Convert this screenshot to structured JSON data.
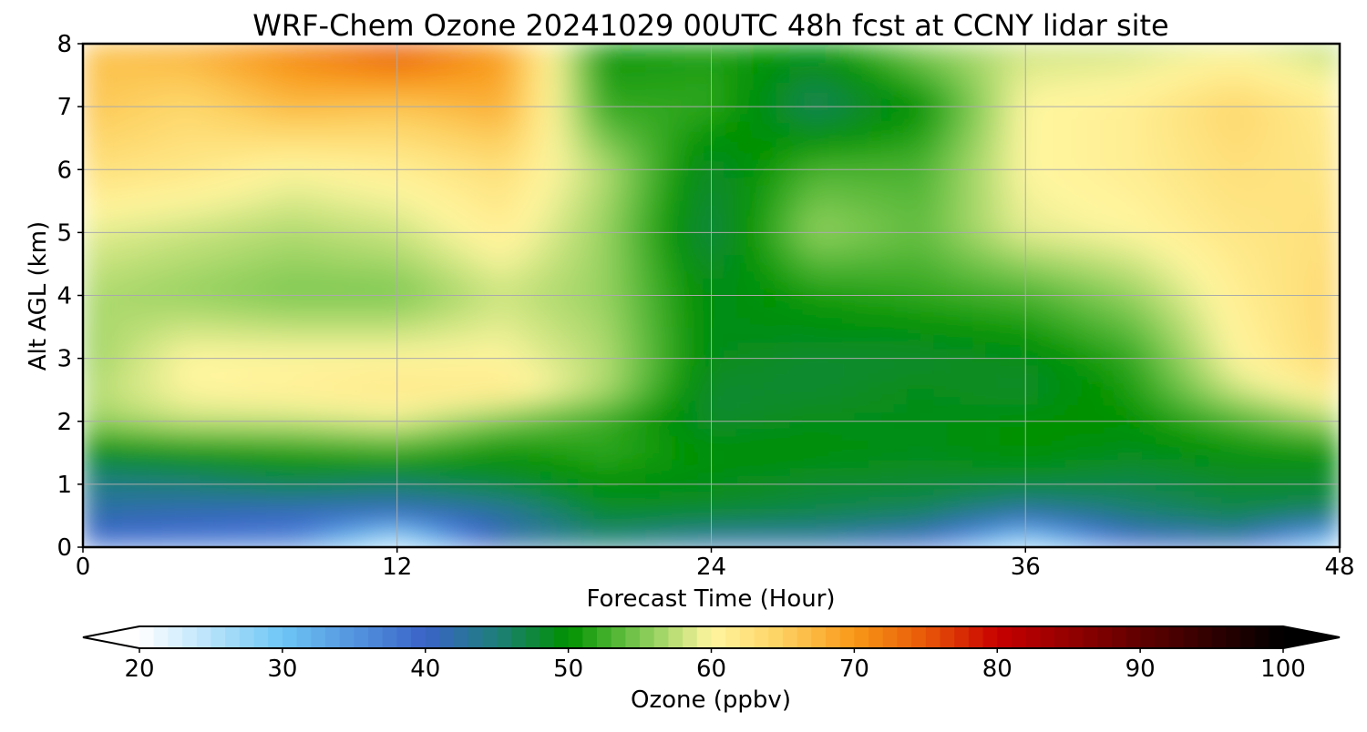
{
  "chart_data": {
    "type": "heatmap",
    "title": "WRF-Chem Ozone  20241029 00UTC 48h fcst at CCNY lidar site",
    "xlabel": "Forecast Time (Hour)",
    "ylabel": "Alt AGL (km)",
    "xlim": [
      0,
      48
    ],
    "ylim": [
      0,
      8
    ],
    "x_ticks": [
      0,
      12,
      24,
      36,
      48
    ],
    "y_ticks": [
      0,
      1,
      2,
      3,
      4,
      5,
      6,
      7,
      8
    ],
    "grid": true,
    "colorbar": {
      "label": "Ozone  (ppbv)",
      "min": 20,
      "max": 100,
      "ticks": [
        20,
        30,
        40,
        50,
        60,
        70,
        80,
        90,
        100
      ],
      "extend": "both",
      "colors": {
        "20": "#ffffff",
        "30": "#6ec6f5",
        "40": "#3a63c8",
        "45": "#1e7f7a",
        "50": "#009100",
        "55": "#7cc850",
        "60": "#fff6a0",
        "65": "#fdd060",
        "70": "#f89818",
        "75": "#e85808",
        "80": "#c80000",
        "90": "#600000",
        "100": "#000000"
      }
    },
    "z_times": [
      0,
      4,
      8,
      12,
      16,
      20,
      24,
      28,
      32,
      36,
      40,
      44,
      48
    ],
    "z_altitudes": [
      0,
      0.5,
      1,
      1.5,
      2,
      2.5,
      3,
      4,
      5,
      6,
      7,
      8
    ],
    "z_values": [
      [
        38,
        37,
        36,
        22,
        42,
        44,
        41,
        41,
        38,
        24,
        38,
        40,
        24
      ],
      [
        42,
        41,
        40,
        40,
        42,
        48,
        48,
        47,
        46,
        42,
        45,
        47,
        46
      ],
      [
        44,
        45,
        47,
        46,
        48,
        50,
        49,
        48,
        48,
        48,
        47,
        48,
        48
      ],
      [
        49,
        50,
        51,
        52,
        50,
        52,
        50,
        50,
        49,
        50,
        49,
        50,
        50
      ],
      [
        56,
        58,
        58,
        59,
        55,
        52,
        48,
        49,
        49,
        50,
        50,
        53,
        57
      ],
      [
        57,
        60,
        61,
        62,
        62,
        57,
        48,
        48,
        49,
        48,
        51,
        58,
        62
      ],
      [
        56,
        60,
        60,
        60,
        60,
        57,
        49,
        48,
        48,
        49,
        52,
        60,
        64
      ],
      [
        57,
        56,
        55,
        55,
        58,
        56,
        49,
        51,
        52,
        53,
        56,
        61,
        64
      ],
      [
        59,
        58,
        57,
        58,
        61,
        56,
        47,
        56,
        54,
        59,
        60,
        62,
        63
      ],
      [
        63,
        62,
        60,
        61,
        63,
        57,
        48,
        53,
        53,
        60,
        61,
        63,
        62
      ],
      [
        66,
        64,
        67,
        66,
        68,
        52,
        52,
        46,
        50,
        60,
        61,
        64,
        61
      ],
      [
        66,
        68,
        72,
        76,
        70,
        50,
        51,
        50,
        56,
        58,
        58,
        59,
        57
      ]
    ]
  }
}
